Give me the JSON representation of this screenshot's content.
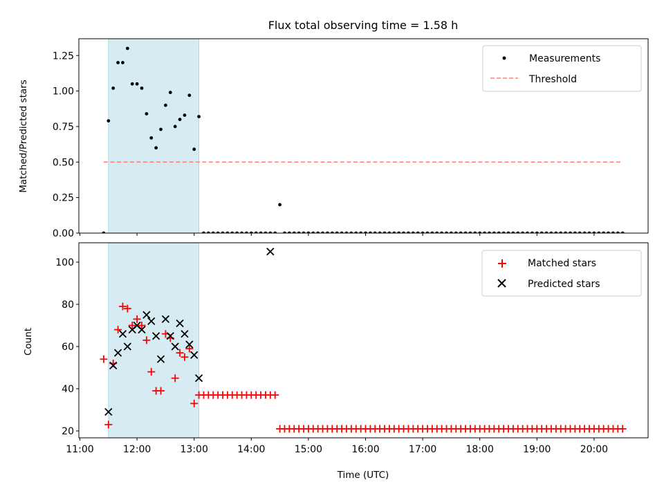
{
  "title": "Flux total observing time = 1.58 h",
  "colors": {
    "shade": "#add8e6",
    "threshold": "#ff7f7f",
    "measurement": "#000000",
    "matched": "#ff0000",
    "predicted": "#000000"
  },
  "chart_data": [
    {
      "type": "scatter",
      "ylabel": "Matched/Predicted stars",
      "ylim": [
        0,
        1.37
      ],
      "yticks": [
        0.0,
        0.25,
        0.5,
        0.75,
        1.0,
        1.25
      ],
      "ytick_labels": [
        "0.00",
        "0.25",
        "0.50",
        "0.75",
        "1.00",
        "1.25"
      ],
      "xlim": [
        "11:00",
        "21:00"
      ],
      "shaded_interval": [
        "11:30",
        "13:05"
      ],
      "legend": [
        "Measurements",
        "Threshold"
      ],
      "legend_position": "top-right",
      "threshold": {
        "y": 0.5,
        "x_range": [
          "11:25",
          "20:30"
        ]
      },
      "series": [
        {
          "name": "Measurements",
          "marker": "dot",
          "x": [
            "11:25",
            "11:30",
            "11:35",
            "11:40",
            "11:45",
            "11:50",
            "11:55",
            "12:00",
            "12:05",
            "12:10",
            "12:15",
            "12:20",
            "12:25",
            "12:30",
            "12:35",
            "12:40",
            "12:45",
            "12:50",
            "12:55",
            "13:00",
            "13:05",
            "13:10",
            "13:15",
            "13:20",
            "13:25",
            "13:30",
            "13:35",
            "13:40",
            "13:45",
            "13:50",
            "13:55",
            "14:00",
            "14:05",
            "14:10",
            "14:15",
            "14:20",
            "14:25",
            "14:30",
            "14:35",
            "14:40",
            "14:45",
            "14:50",
            "14:55",
            "15:00",
            "15:05",
            "15:10",
            "15:15",
            "15:20",
            "15:25",
            "15:30",
            "15:35",
            "15:40",
            "15:45",
            "15:50",
            "15:55",
            "16:00",
            "16:05",
            "16:10",
            "16:15",
            "16:20",
            "16:25",
            "16:30",
            "16:35",
            "16:40",
            "16:45",
            "16:50",
            "16:55",
            "17:00",
            "17:05",
            "17:10",
            "17:15",
            "17:20",
            "17:25",
            "17:30",
            "17:35",
            "17:40",
            "17:45",
            "17:50",
            "17:55",
            "18:00",
            "18:05",
            "18:10",
            "18:15",
            "18:20",
            "18:25",
            "18:30",
            "18:35",
            "18:40",
            "18:45",
            "18:50",
            "18:55",
            "19:00",
            "19:05",
            "19:10",
            "19:15",
            "19:20",
            "19:25",
            "19:30",
            "19:35",
            "19:40",
            "19:45",
            "19:50",
            "19:55",
            "20:00",
            "20:05",
            "20:10",
            "20:15",
            "20:20",
            "20:25",
            "20:30"
          ],
          "y": [
            0.0,
            0.79,
            1.02,
            1.2,
            1.2,
            1.3,
            1.05,
            1.05,
            1.02,
            0.84,
            0.67,
            0.6,
            0.73,
            0.9,
            0.99,
            0.75,
            0.8,
            0.83,
            0.97,
            0.59,
            0.82,
            0.0,
            0.0,
            0.0,
            0.0,
            0.0,
            0.0,
            0.0,
            0.0,
            0.0,
            0.0,
            0.0,
            0.0,
            0.0,
            0.0,
            0.0,
            0.0,
            0.2,
            0.0,
            0.0,
            0.0,
            0.0,
            0.0,
            0.0,
            0.0,
            0.0,
            0.0,
            0.0,
            0.0,
            0.0,
            0.0,
            0.0,
            0.0,
            0.0,
            0.0,
            0.0,
            0.0,
            0.0,
            0.0,
            0.0,
            0.0,
            0.0,
            0.0,
            0.0,
            0.0,
            0.0,
            0.0,
            0.0,
            0.0,
            0.0,
            0.0,
            0.0,
            0.0,
            0.0,
            0.0,
            0.0,
            0.0,
            0.0,
            0.0,
            0.0,
            0.0,
            0.0,
            0.0,
            0.0,
            0.0,
            0.0,
            0.0,
            0.0,
            0.0,
            0.0,
            0.0,
            0.0,
            0.0,
            0.0,
            0.0,
            0.0,
            0.0,
            0.0,
            0.0,
            0.0,
            0.0,
            0.0,
            0.0,
            0.0,
            0.0,
            0.0,
            0.0,
            0.0,
            0.0,
            0.0
          ]
        }
      ]
    },
    {
      "type": "scatter",
      "xlabel": "Time (UTC)",
      "ylabel": "Count",
      "ylim": [
        17,
        109
      ],
      "yticks": [
        20,
        40,
        60,
        80,
        100
      ],
      "ytick_labels": [
        "20",
        "40",
        "60",
        "80",
        "100"
      ],
      "xlim": [
        "11:00",
        "21:00"
      ],
      "xticks": [
        "11:00",
        "12:00",
        "13:00",
        "14:00",
        "15:00",
        "16:00",
        "17:00",
        "18:00",
        "19:00",
        "20:00"
      ],
      "shaded_interval": [
        "11:30",
        "13:05"
      ],
      "legend": [
        "Matched stars",
        "Predicted stars"
      ],
      "legend_position": "top-right",
      "series": [
        {
          "name": "Matched stars",
          "marker": "plus",
          "x": [
            "11:25",
            "11:30",
            "11:35",
            "11:40",
            "11:45",
            "11:50",
            "11:55",
            "12:00",
            "12:05",
            "12:10",
            "12:15",
            "12:20",
            "12:25",
            "12:30",
            "12:35",
            "12:40",
            "12:45",
            "12:50",
            "12:55",
            "13:00",
            "13:05",
            "13:10",
            "13:15",
            "13:20",
            "13:25",
            "13:30",
            "13:35",
            "13:40",
            "13:45",
            "13:50",
            "13:55",
            "14:00",
            "14:05",
            "14:10",
            "14:15",
            "14:20",
            "14:25",
            "14:30",
            "14:35",
            "14:40",
            "14:45",
            "14:50",
            "14:55",
            "15:00",
            "15:05",
            "15:10",
            "15:15",
            "15:20",
            "15:25",
            "15:30",
            "15:35",
            "15:40",
            "15:45",
            "15:50",
            "15:55",
            "16:00",
            "16:05",
            "16:10",
            "16:15",
            "16:20",
            "16:25",
            "16:30",
            "16:35",
            "16:40",
            "16:45",
            "16:50",
            "16:55",
            "17:00",
            "17:05",
            "17:10",
            "17:15",
            "17:20",
            "17:25",
            "17:30",
            "17:35",
            "17:40",
            "17:45",
            "17:50",
            "17:55",
            "18:00",
            "18:05",
            "18:10",
            "18:15",
            "18:20",
            "18:25",
            "18:30",
            "18:35",
            "18:40",
            "18:45",
            "18:50",
            "18:55",
            "19:00",
            "19:05",
            "19:10",
            "19:15",
            "19:20",
            "19:25",
            "19:30",
            "19:35",
            "19:40",
            "19:45",
            "19:50",
            "19:55",
            "20:00",
            "20:05",
            "20:10",
            "20:15",
            "20:20",
            "20:25",
            "20:30"
          ],
          "y": [
            54,
            23,
            52,
            68,
            79,
            78,
            70,
            73,
            70,
            63,
            48,
            39,
            39,
            66,
            64,
            45,
            57,
            55,
            59,
            33,
            37,
            37,
            37,
            37,
            37,
            37,
            37,
            37,
            37,
            37,
            37,
            37,
            37,
            37,
            37,
            37,
            37,
            21,
            21,
            21,
            21,
            21,
            21,
            21,
            21,
            21,
            21,
            21,
            21,
            21,
            21,
            21,
            21,
            21,
            21,
            21,
            21,
            21,
            21,
            21,
            21,
            21,
            21,
            21,
            21,
            21,
            21,
            21,
            21,
            21,
            21,
            21,
            21,
            21,
            21,
            21,
            21,
            21,
            21,
            21,
            21,
            21,
            21,
            21,
            21,
            21,
            21,
            21,
            21,
            21,
            21,
            21,
            21,
            21,
            21,
            21,
            21,
            21,
            21,
            21,
            21,
            21,
            21,
            21,
            21,
            21,
            21,
            21,
            21,
            21
          ]
        },
        {
          "name": "Predicted stars",
          "marker": "x",
          "x": [
            "11:30",
            "11:35",
            "11:40",
            "11:45",
            "11:50",
            "11:55",
            "12:00",
            "12:05",
            "12:10",
            "12:15",
            "12:20",
            "12:25",
            "12:30",
            "12:35",
            "12:40",
            "12:45",
            "12:50",
            "12:55",
            "13:00",
            "13:05",
            "14:20"
          ],
          "y": [
            29,
            51,
            57,
            66,
            60,
            68,
            70,
            68,
            75,
            72,
            65,
            54,
            73,
            65,
            60,
            71,
            66,
            61,
            56,
            45,
            105
          ]
        }
      ]
    }
  ]
}
